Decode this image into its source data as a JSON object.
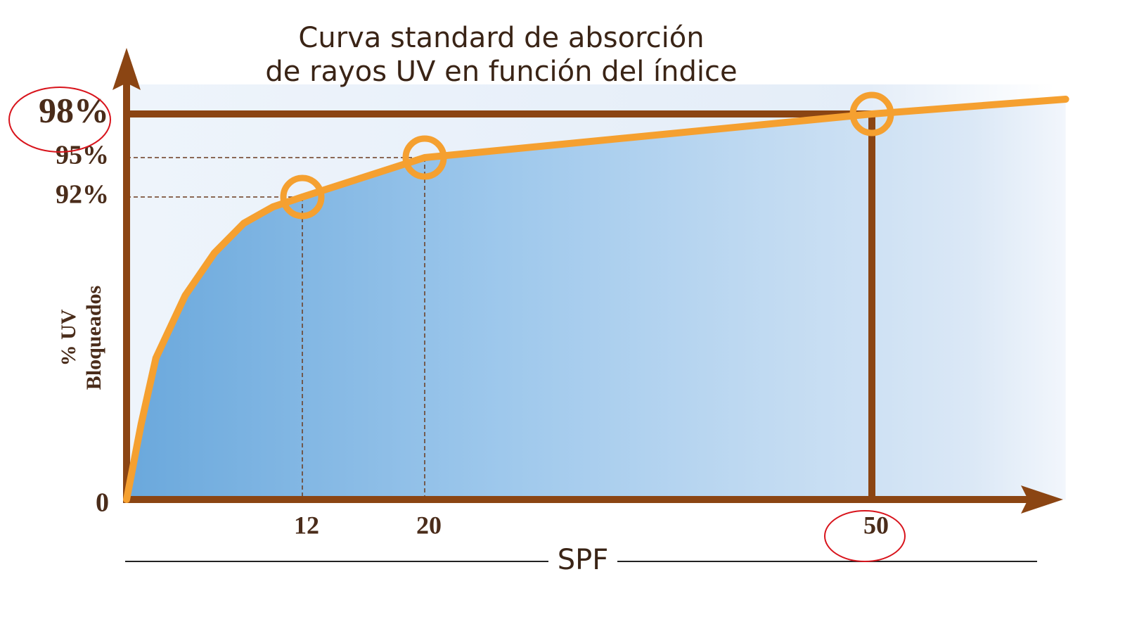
{
  "chart_data": {
    "type": "line",
    "title": [
      "Curva standard de absorción",
      "de rayos UV en función del índice"
    ],
    "ylabel": [
      "% UV",
      "Bloqueados"
    ],
    "xlabel": "SPF",
    "x": [
      0,
      1,
      2,
      4,
      6,
      8,
      10,
      12,
      20,
      50,
      63
    ],
    "series": [
      {
        "color": "#f5a030",
        "values": [
          0,
          23,
          43,
          62,
          75,
          84,
          89,
          92,
          95,
          98,
          99
        ]
      }
    ],
    "xlim": [
      0,
      65
    ],
    "xticks": [
      12,
      20,
      50
    ],
    "ylim": [
      0,
      100
    ],
    "yticks": [
      0,
      {
        "value": 92,
        "label": "92%"
      },
      {
        "value": 95,
        "label": "95%"
      },
      {
        "value": 98,
        "label": "98%"
      }
    ]
  }
}
